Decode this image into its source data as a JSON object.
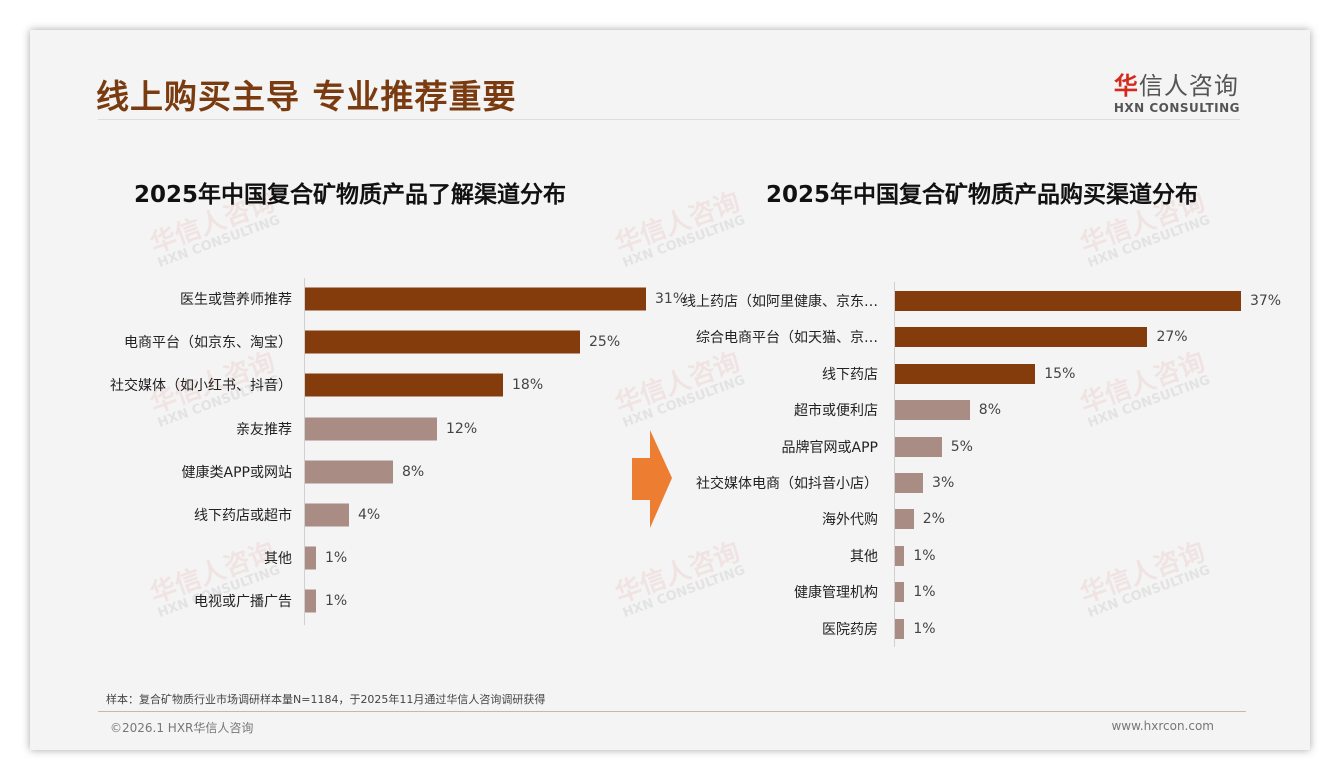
{
  "header": {
    "title": "线上购买主导 专业推荐重要"
  },
  "logo": {
    "cn_red": "华",
    "cn_rest": "信人咨询",
    "en": "HXN CONSULTING"
  },
  "colors": {
    "dark": "#843C0C",
    "light": "#A98C84",
    "arrow": "#ED7D31"
  },
  "chart_data": [
    {
      "type": "bar",
      "orientation": "horizontal",
      "title": "2025年中国复合矿物质产品了解渠道分布",
      "categories": [
        "医生或营养师推荐",
        "电商平台（如京东、淘宝）",
        "社交媒体（如小红书、抖音）",
        "亲友推荐",
        "健康类APP或网站",
        "线下药店或超市",
        "其他",
        "电视或广播广告"
      ],
      "values": [
        31,
        25,
        18,
        12,
        8,
        4,
        1,
        1
      ],
      "value_labels": [
        "31%",
        "25%",
        "18%",
        "12%",
        "8%",
        "4%",
        "1%",
        "1%"
      ],
      "highlight_count": 3,
      "xlim": [
        0,
        31
      ]
    },
    {
      "type": "bar",
      "orientation": "horizontal",
      "title": "2025年中国复合矿物质产品购买渠道分布",
      "categories": [
        "线上药店（如阿里健康、京东…",
        "综合电商平台（如天猫、京…",
        "线下药店",
        "超市或便利店",
        "品牌官网或APP",
        "社交媒体电商（如抖音小店）",
        "海外代购",
        "其他",
        "健康管理机构",
        "医院药房"
      ],
      "values": [
        37,
        27,
        15,
        8,
        5,
        3,
        2,
        1,
        1,
        1
      ],
      "value_labels": [
        "37%",
        "27%",
        "15%",
        "8%",
        "5%",
        "3%",
        "2%",
        "1%",
        "1%",
        "1%"
      ],
      "highlight_count": 3,
      "xlim": [
        0,
        37
      ]
    }
  ],
  "footer": {
    "note": "样本：复合矿物质行业市场调研样本量N=1184，于2025年11月通过华信人咨询调研获得",
    "copyright": "©2026.1 HXR华信人咨询",
    "url": "www.hxrcon.com"
  }
}
